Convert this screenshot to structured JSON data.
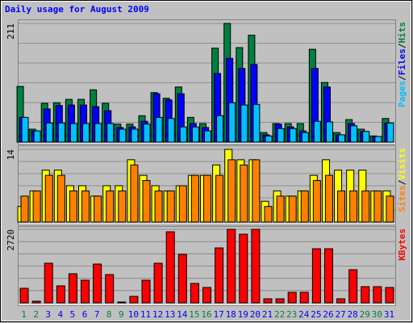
{
  "title": "Daily usage for August 2009",
  "chart_data": [
    {
      "type": "bar",
      "ylim": [
        0,
        211
      ],
      "yticks": [
        211
      ],
      "legend_separator": "/",
      "series": [
        {
          "name": "Hits",
          "color": "#008040",
          "values": [
            99,
            23,
            69,
            70,
            76,
            76,
            93,
            69,
            32,
            32,
            47,
            88,
            78,
            98,
            44,
            33,
            167,
            211,
            168,
            190,
            17,
            33,
            33,
            33,
            165,
            106,
            17,
            40,
            23,
            11,
            42
          ]
        },
        {
          "name": "Files",
          "color": "#0000ff",
          "values": [
            44,
            20,
            59,
            65,
            66,
            66,
            63,
            56,
            26,
            27,
            37,
            86,
            75,
            86,
            33,
            26,
            122,
            149,
            131,
            138,
            13,
            32,
            27,
            20,
            131,
            98,
            13,
            33,
            19,
            10,
            34
          ]
        },
        {
          "name": "Pages",
          "color": "#00c0ff",
          "values": [
            44,
            20,
            34,
            34,
            33,
            33,
            33,
            33,
            23,
            23,
            32,
            44,
            42,
            27,
            27,
            20,
            47,
            70,
            66,
            67,
            11,
            24,
            24,
            17,
            37,
            36,
            13,
            29,
            19,
            10,
            34
          ]
        }
      ]
    },
    {
      "type": "bar",
      "ylim": [
        0,
        14
      ],
      "yticks": [
        14
      ],
      "legend_separator": "/",
      "series": [
        {
          "name": "Visits",
          "color": "#ffff00",
          "values": [
            3,
            6,
            10,
            10,
            7,
            7,
            5,
            7,
            7,
            12,
            9,
            7,
            6,
            7,
            9,
            9,
            11,
            14,
            12,
            12,
            4,
            6,
            5,
            6,
            9,
            12,
            10,
            10,
            10,
            6,
            6
          ]
        },
        {
          "name": "Sites",
          "color": "#ff8000",
          "values": [
            5,
            6,
            9,
            9,
            6,
            6,
            5,
            6,
            6,
            11,
            8,
            6,
            6,
            7,
            9,
            9,
            9,
            12,
            11,
            12,
            3,
            5,
            5,
            6,
            8,
            9,
            6,
            6,
            6,
            6,
            5
          ]
        }
      ]
    },
    {
      "type": "bar",
      "ylim": [
        0,
        2720
      ],
      "yticks": [
        2720
      ],
      "series": [
        {
          "name": "KBytes",
          "color": "#ff0000",
          "values": [
            538,
            60,
            1465,
            628,
            1076,
            837,
            1435,
            1046,
            30,
            239,
            837,
            1465,
            2630,
            1793,
            717,
            568,
            2032,
            2720,
            2540,
            2720,
            149,
            149,
            389,
            389,
            2002,
            2002,
            149,
            1225,
            598,
            598,
            568
          ]
        }
      ],
      "categories": [
        "1",
        "2",
        "3",
        "4",
        "5",
        "6",
        "7",
        "8",
        "9",
        "10",
        "11",
        "12",
        "13",
        "14",
        "15",
        "16",
        "17",
        "18",
        "19",
        "20",
        "21",
        "22",
        "23",
        "24",
        "25",
        "26",
        "27",
        "28",
        "29",
        "30",
        "31"
      ],
      "category_colors": [
        "#008040",
        "#008040",
        "#0000ff",
        "#0000ff",
        "#0000ff",
        "#0000ff",
        "#0000ff",
        "#008040",
        "#008040",
        "#0000ff",
        "#0000ff",
        "#0000ff",
        "#0000ff",
        "#0000ff",
        "#008040",
        "#008040",
        "#0000ff",
        "#0000ff",
        "#0000ff",
        "#0000ff",
        "#0000ff",
        "#008040",
        "#008040",
        "#0000ff",
        "#0000ff",
        "#0000ff",
        "#0000ff",
        "#0000ff",
        "#008040",
        "#008040",
        "#0000ff"
      ]
    }
  ]
}
